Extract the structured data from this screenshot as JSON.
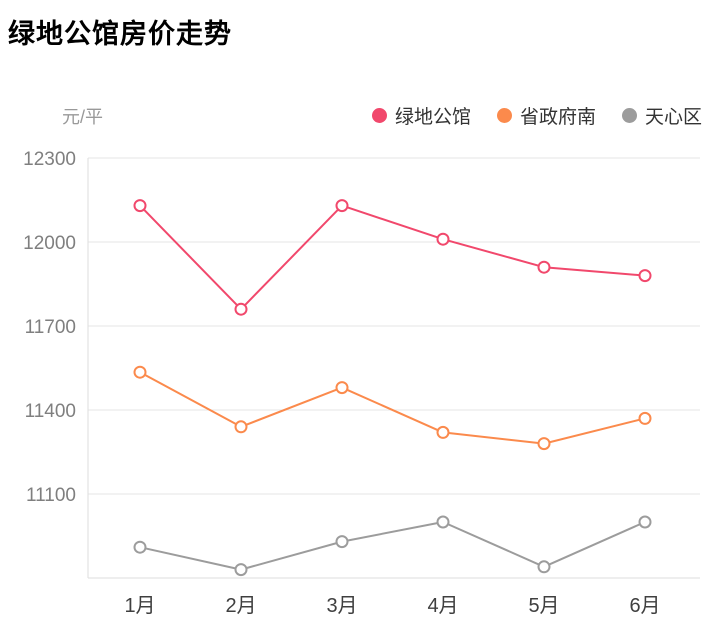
{
  "page": {
    "title": "绿地公馆房价走势",
    "unit_label": "元/平"
  },
  "chart_data": {
    "type": "line",
    "title": "绿地公馆房价走势",
    "ylabel": "元/平",
    "xlabel": "",
    "categories": [
      "1月",
      "2月",
      "3月",
      "4月",
      "5月",
      "6月"
    ],
    "series": [
      {
        "name": "绿地公馆",
        "color": "#f1486c",
        "values": [
          12130,
          11760,
          12130,
          12010,
          11910,
          11880
        ]
      },
      {
        "name": "省政府南",
        "color": "#fb8a4c",
        "values": [
          11535,
          11340,
          11480,
          11320,
          11280,
          11370
        ]
      },
      {
        "name": "天心区",
        "color": "#9c9c9c",
        "values": [
          10910,
          10830,
          10930,
          11000,
          10840,
          11000
        ]
      }
    ],
    "y_ticks": [
      12300,
      12000,
      11700,
      11400,
      11100
    ],
    "ylim": [
      10800,
      12300
    ],
    "grid": true,
    "legend_position": "top",
    "marker": "open-circle"
  }
}
